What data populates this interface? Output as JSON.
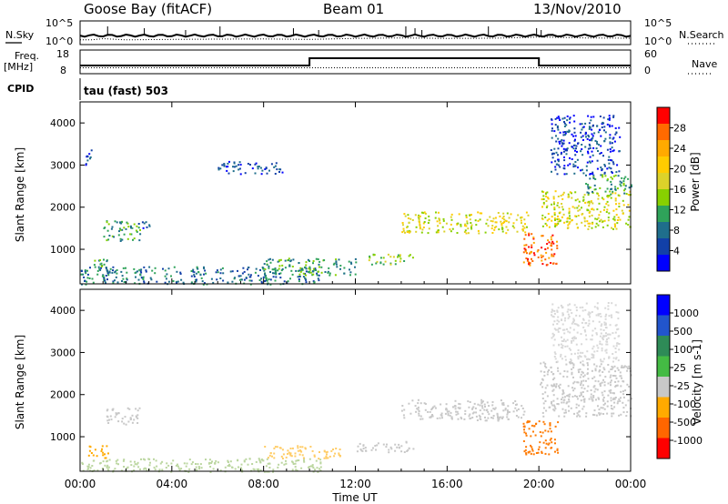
{
  "header": {
    "station": "Goose Bay (fitACF)",
    "beam": "Beam 01",
    "date": "13/Nov/2010"
  },
  "noise_panel": {
    "left_label": "N.Sky",
    "right_label": "N.Search",
    "left_ticks": [
      "10^5",
      "10^0"
    ],
    "right_ticks": [
      "10^5",
      "10^0"
    ]
  },
  "freq_panel": {
    "left_label_1": "Freq.",
    "left_label_2": "[MHz]",
    "left_ticks": [
      "18",
      "8"
    ],
    "right_ticks": [
      "60",
      "0"
    ],
    "right_label": "Nave"
  },
  "cpid": {
    "label": "CPID",
    "text": "tau (fast) 503"
  },
  "x_axis": {
    "label": "Time UT",
    "ticks": [
      "00:00",
      "04:00",
      "08:00",
      "12:00",
      "16:00",
      "20:00",
      "00:00"
    ]
  },
  "chart_data": [
    {
      "type": "line",
      "name": "noise",
      "x_hours": [
        0,
        0.5,
        1.0,
        2.0,
        4.0,
        6.0,
        8.0,
        10.0,
        12.0,
        14.0,
        16.0,
        18.0,
        19.5,
        20.0,
        22.0,
        24.0
      ],
      "search_noise_level": [
        0.2,
        0.2,
        0.25,
        0.2,
        0.22,
        0.23,
        0.24,
        0.22,
        0.26,
        0.28,
        0.26,
        0.27,
        0.3,
        0.32,
        0.28,
        0.27
      ],
      "spikes_hours": [
        1.2,
        2.8,
        4.6,
        6.1,
        9.3,
        10.4,
        14.2,
        14.6,
        14.9,
        17.8,
        19.9,
        20.1
      ]
    },
    {
      "type": "line",
      "name": "frequency",
      "x_hours": [
        0,
        10,
        10,
        20,
        20,
        24
      ],
      "values": [
        0,
        0,
        1,
        1,
        0,
        0
      ],
      "nave_dotted_level": 0.25
    },
    {
      "type": "heatmap",
      "title": "Power",
      "xlabel": "Time UT",
      "ylabel": "Slant Range [km]",
      "colorbar_label": "Power [dB]",
      "colorbar_ticks": [
        "28",
        "24",
        "20",
        "16",
        "12",
        "8",
        "4"
      ],
      "colorbar_colors": [
        "#ff0000",
        "#ff6a00",
        "#ffaa00",
        "#ffcc00",
        "#dcd22a",
        "#88d000",
        "#2fa35a",
        "#1f6e8c",
        "#1240a8",
        "#0000ff"
      ],
      "ylim": [
        180,
        4500
      ],
      "yticks": [
        "4000",
        "3000",
        "2000",
        "1000"
      ],
      "echo_regions": [
        {
          "t0": 0.2,
          "t1": 0.6,
          "r0": 3000,
          "r1": 3400,
          "level": 1
        },
        {
          "t0": 1.0,
          "t1": 2.6,
          "r0": 1200,
          "r1": 1700,
          "level": 3
        },
        {
          "t0": 2.5,
          "t1": 3.0,
          "r0": 1500,
          "r1": 1700,
          "level": 1
        },
        {
          "t0": 6.0,
          "t1": 8.8,
          "r0": 2800,
          "r1": 3100,
          "level": 1
        },
        {
          "t0": 0.0,
          "t1": 10.5,
          "r0": 180,
          "r1": 600,
          "level": 2
        },
        {
          "t0": 0.5,
          "t1": 1.3,
          "r0": 500,
          "r1": 800,
          "level": 3
        },
        {
          "t0": 8.0,
          "t1": 12.0,
          "r0": 400,
          "r1": 800,
          "level": 3
        },
        {
          "t0": 12.5,
          "t1": 14.5,
          "r0": 650,
          "r1": 900,
          "level": 4
        },
        {
          "t0": 14.0,
          "t1": 19.5,
          "r0": 1400,
          "r1": 1900,
          "level": 5
        },
        {
          "t0": 19.3,
          "t1": 20.8,
          "r0": 600,
          "r1": 1400,
          "level": 8
        },
        {
          "t0": 20.0,
          "t1": 24.0,
          "r0": 1500,
          "r1": 2400,
          "level": 5
        },
        {
          "t0": 22.0,
          "t1": 24.0,
          "r0": 2300,
          "r1": 2800,
          "level": 3
        },
        {
          "t0": 20.5,
          "t1": 23.5,
          "r0": 2800,
          "r1": 4200,
          "level": 1
        }
      ]
    },
    {
      "type": "heatmap",
      "title": "Velocity",
      "xlabel": "Time UT",
      "ylabel": "Slant Range [km]",
      "colorbar_label": "Velocity [m s-1]",
      "colorbar_ticks": [
        "1000",
        "500",
        "100",
        "25",
        "-25",
        "-100",
        "-500",
        "-1000"
      ],
      "colorbar_colors": [
        "#0000ff",
        "#2255cc",
        "#2e8b57",
        "#44bb44",
        "#c8c8c8",
        "#ffaa00",
        "#ff6600",
        "#ff0000"
      ],
      "ylim": [
        180,
        4500
      ],
      "yticks": [
        "4000",
        "3000",
        "2000",
        "1000"
      ],
      "echo_regions": [
        {
          "t0": 1.0,
          "t1": 2.6,
          "r0": 1300,
          "r1": 1700,
          "color": "#c8c8c8"
        },
        {
          "t0": 0.3,
          "t1": 1.2,
          "r0": 500,
          "r1": 800,
          "color": "#ffaa00"
        },
        {
          "t0": 0.0,
          "t1": 10.5,
          "r0": 180,
          "r1": 500,
          "color": "#bbd6a0"
        },
        {
          "t0": 8.0,
          "t1": 11.5,
          "r0": 500,
          "r1": 800,
          "color": "#ffcc66"
        },
        {
          "t0": 12.0,
          "t1": 14.5,
          "r0": 650,
          "r1": 900,
          "color": "#c8c8c8"
        },
        {
          "t0": 14.0,
          "t1": 19.5,
          "r0": 1400,
          "r1": 1900,
          "color": "#c8c8c8"
        },
        {
          "t0": 19.3,
          "t1": 20.8,
          "r0": 600,
          "r1": 1400,
          "color": "#ff7a00"
        },
        {
          "t0": 20.0,
          "t1": 24.0,
          "r0": 1500,
          "r1": 2800,
          "color": "#c8c8c8"
        },
        {
          "t0": 20.5,
          "t1": 23.5,
          "r0": 2800,
          "r1": 4200,
          "color": "#d8d8d8"
        }
      ]
    }
  ]
}
